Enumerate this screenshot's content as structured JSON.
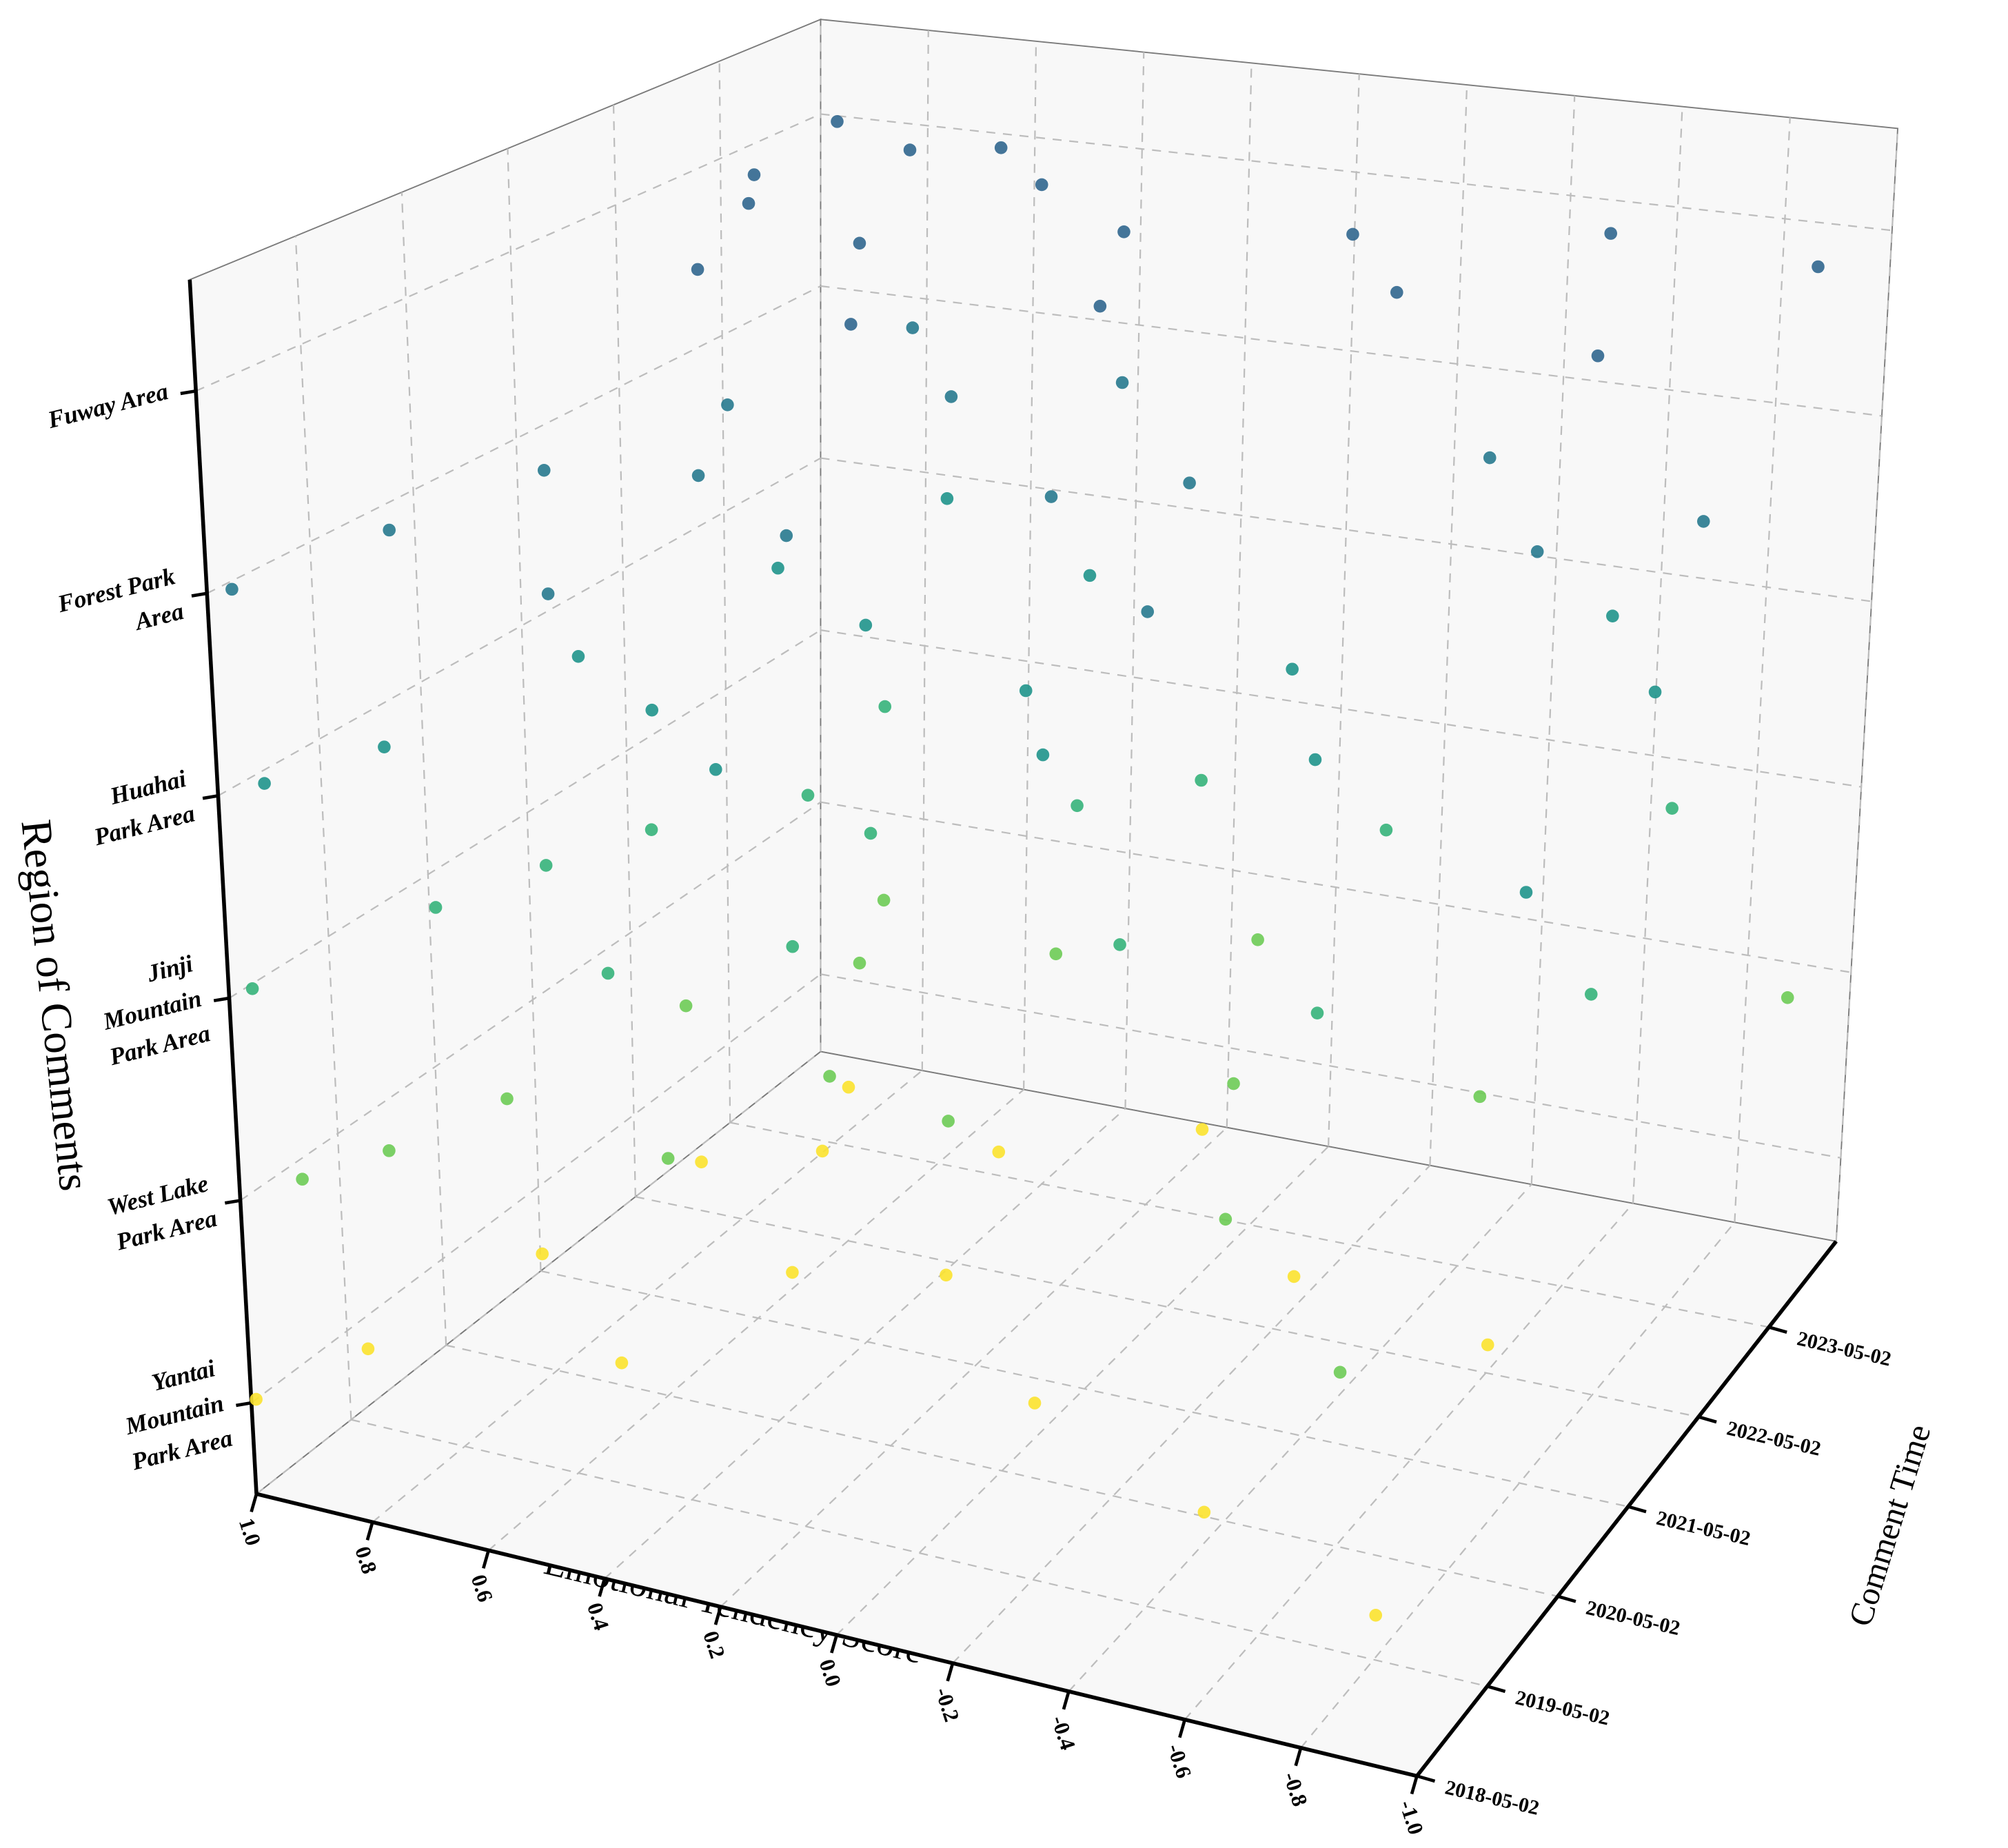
{
  "chart_data": {
    "type": "scatter3d",
    "x_label": "Emotional Tendency Score",
    "time_label": "Comment Time",
    "region_label": "Region of Comments",
    "xlim": [
      1,
      -1
    ],
    "xticks": [
      {
        "value": 1,
        "label": "1.0"
      },
      0.8,
      0.6,
      0.4,
      0.2,
      {
        "value": 0,
        "label": "0.0"
      },
      -0.2,
      -0.4,
      -0.6,
      -0.8,
      {
        "value": -1,
        "label": "-1.0"
      }
    ],
    "timelim": [
      "2018-05-02",
      "2024-04-15"
    ],
    "timeticks": [
      "2018-05-02",
      "2019-05-02",
      "2020-05-02",
      "2021-05-02",
      "2022-05-02",
      "2023-05-02"
    ],
    "grid": true,
    "series": [
      {
        "name": "Fuway Area",
        "color": "#30668e",
        "x": [
          0.95,
          0.9,
          0.82,
          0.75,
          0.7,
          0.62,
          0.55,
          0.45,
          0.35,
          0.2,
          0.05,
          -0.15,
          -0.35,
          -0.55,
          -0.78,
          -0.95
        ],
        "time": [
          "2024-03-10",
          "2023-02-15",
          "2022-08-20",
          "2023-11-05",
          "2021-06-12",
          "2024-01-20",
          "2022-03-18",
          "2023-07-09",
          "2020-11-25",
          "2022-12-01",
          "2021-09-14",
          "2023-04-22",
          "2022-06-30",
          "2023-10-11",
          "2021-12-05",
          "2023-08-19"
        ]
      },
      {
        "name": "Forest Park\nArea",
        "color": "#27798e",
        "x": [
          0.98,
          0.93,
          0.88,
          0.8,
          0.74,
          0.66,
          0.58,
          0.5,
          0.4,
          0.28,
          0.12,
          -0.05,
          -0.25,
          -0.45,
          -0.7,
          -0.9
        ],
        "time": [
          "2018-06-15",
          "2019-09-10",
          "2020-12-03",
          "2022-04-17",
          "2023-10-28",
          "2021-03-09",
          "2019-02-22",
          "2022-11-14",
          "2020-07-06",
          "2023-05-30",
          "2021-08-18",
          "2022-02-07",
          "2020-03-26",
          "2023-01-12",
          "2021-11-03",
          "2022-07-24"
        ]
      },
      {
        "name": "Huahai\nPark Area",
        "color": "#1f938b",
        "x": [
          0.97,
          0.9,
          0.85,
          0.78,
          0.7,
          0.63,
          0.52,
          0.42,
          0.3,
          0.15,
          0.0,
          -0.2,
          -0.4,
          -0.6,
          -0.8,
          -0.92
        ],
        "time": [
          "2018-08-11",
          "2019-05-20",
          "2021-01-15",
          "2022-09-02",
          "2023-12-19",
          "2020-06-27",
          "2022-01-30",
          "2019-11-08",
          "2023-03-14",
          "2021-07-21",
          "2020-10-05",
          "2022-05-16",
          "2021-04-09",
          "2023-08-27",
          "2022-10-12",
          "2020-01-28"
        ]
      },
      {
        "name": "Jinji\nMountain\nPark Area",
        "color": "#35b37a",
        "x": [
          0.99,
          0.92,
          0.86,
          0.79,
          0.72,
          0.64,
          0.56,
          0.47,
          0.36,
          0.22,
          0.08,
          -0.1,
          -0.3,
          -0.5,
          -0.72,
          -0.88
        ],
        "time": [
          "2018-07-04",
          "2019-12-11",
          "2020-09-19",
          "2021-05-25",
          "2023-06-08",
          "2022-03-01",
          "2019-07-17",
          "2021-10-29",
          "2020-04-13",
          "2022-08-05",
          "2023-02-24",
          "2021-01-07",
          "2022-11-30",
          "2020-08-22",
          "2023-09-15",
          "2021-06-02"
        ]
      },
      {
        "name": "West Lake\nPark Area",
        "color": "#6dcb55",
        "x": [
          0.96,
          0.9,
          0.84,
          0.77,
          0.69,
          0.6,
          0.51,
          0.43,
          0.32,
          0.18,
          0.03,
          -0.18,
          -0.38,
          -0.58,
          -0.76,
          -0.93
        ],
        "time": [
          "2018-09-23",
          "2019-04-06",
          "2020-02-18",
          "2021-08-09",
          "2023-04-03",
          "2022-06-22",
          "2019-10-31",
          "2021-02-12",
          "2022-12-26",
          "2020-11-16",
          "2023-07-19",
          "2021-11-24",
          "2020-05-29",
          "2022-04-04",
          "2019-01-15",
          "2023-11-27"
        ]
      },
      {
        "name": "Yantai\nMountain\nPark Area",
        "color": "#fbe22d",
        "x": [
          1,
          0.94,
          0.87,
          0.81,
          0.73,
          0.65,
          0.57,
          0.48,
          0.38,
          0.25,
          0.1,
          -0.08,
          -0.28,
          -0.48,
          -0.68,
          -0.86
        ],
        "time": [
          "2018-05-20",
          "2019-03-12",
          "2020-08-14",
          "2021-12-20",
          "2023-02-05",
          "2022-05-08",
          "2019-08-26",
          "2020-12-28",
          "2022-09-18",
          "2021-04-21",
          "2023-05-15",
          "2020-03-07",
          "2022-01-11",
          "2019-06-19",
          "2021-09-27",
          "2018-11-02"
        ]
      }
    ]
  }
}
